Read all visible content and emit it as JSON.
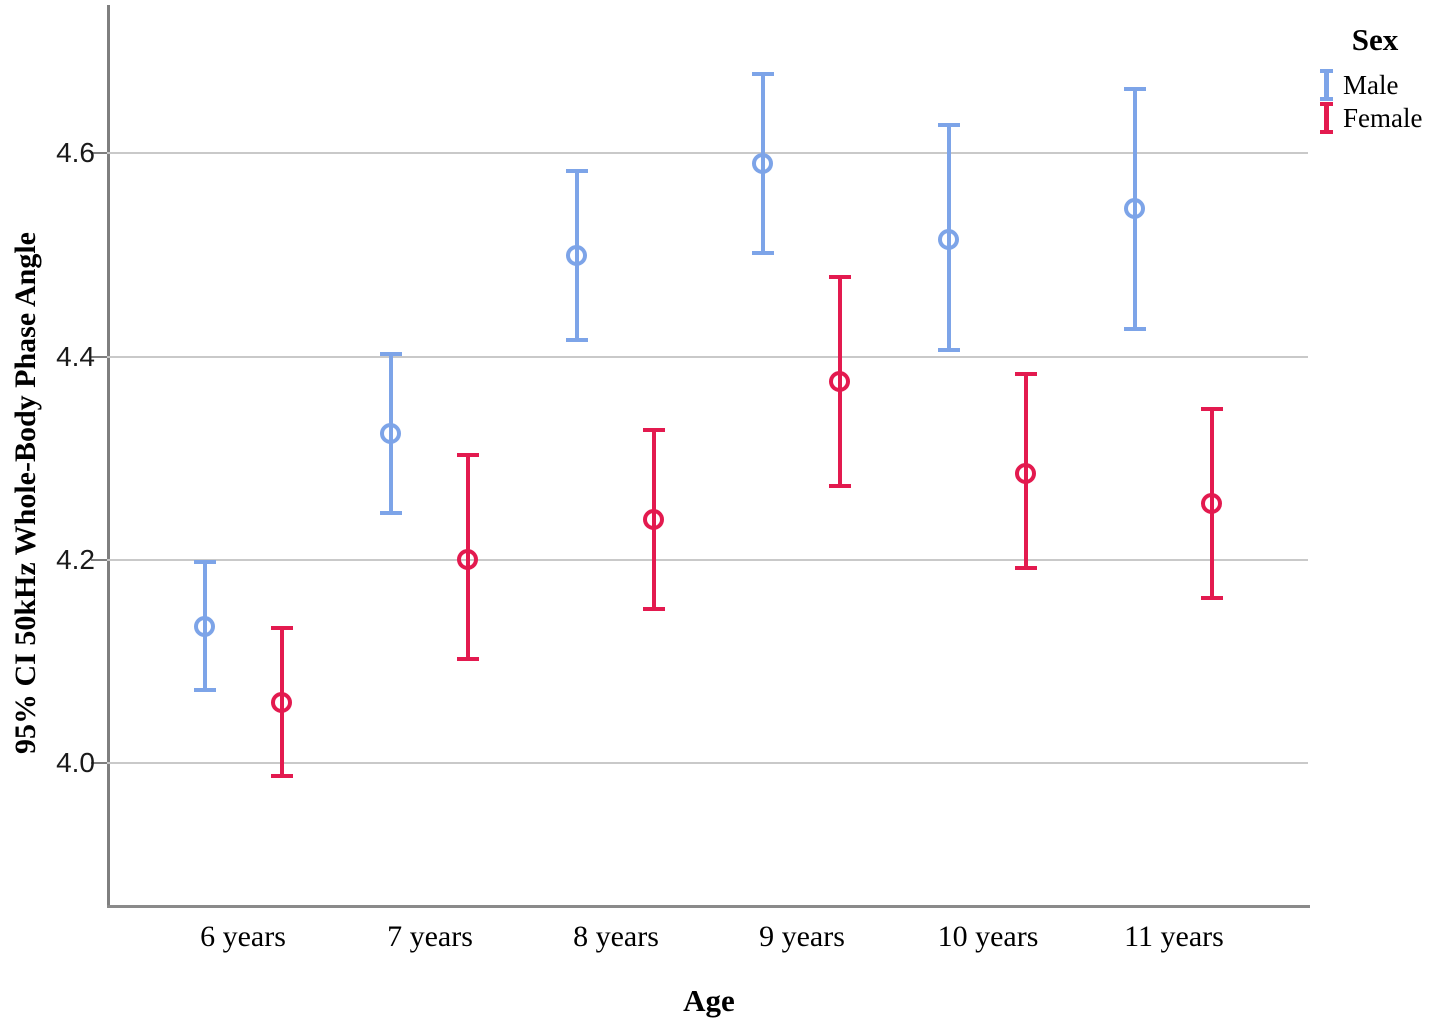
{
  "chart_data": {
    "type": "errorbar",
    "title": "",
    "xlabel": "Age",
    "ylabel": "95% CI 50kHz Whole-Body Phase Angle",
    "categories": [
      "6 years",
      "7 years",
      "8 years",
      "9 years",
      "10 years",
      "11 years"
    ],
    "y_tick_labels": [
      "4.0",
      "4.2",
      "4.4",
      "4.6"
    ],
    "y_ticks": [
      4.0,
      4.2,
      4.4,
      4.6
    ],
    "ylim": [
      3.86,
      4.75
    ],
    "grid": "horizontal-only",
    "legend_position": "top-right",
    "legend": {
      "title": "Sex",
      "entries": [
        {
          "label": "Male",
          "color": "#7DA4E8"
        },
        {
          "label": "Female",
          "color": "#E31A4F"
        }
      ]
    },
    "series": [
      {
        "name": "Male",
        "color": "#7DA4E8",
        "points": [
          {
            "category": "6 years",
            "mean": 4.135,
            "ci_low": 4.07,
            "ci_high": 4.2
          },
          {
            "category": "7 years",
            "mean": 4.325,
            "ci_low": 4.245,
            "ci_high": 4.405
          },
          {
            "category": "8 years",
            "mean": 4.5,
            "ci_low": 4.415,
            "ci_high": 4.585
          },
          {
            "category": "9 years",
            "mean": 4.59,
            "ci_low": 4.5,
            "ci_high": 4.68
          },
          {
            "category": "10 years",
            "mean": 4.515,
            "ci_low": 4.405,
            "ci_high": 4.63
          },
          {
            "category": "11 years",
            "mean": 4.545,
            "ci_low": 4.425,
            "ci_high": 4.665
          }
        ]
      },
      {
        "name": "Female",
        "color": "#E31A4F",
        "points": [
          {
            "category": "6 years",
            "mean": 4.06,
            "ci_low": 3.985,
            "ci_high": 4.135
          },
          {
            "category": "7 years",
            "mean": 4.2,
            "ci_low": 4.1,
            "ci_high": 4.305
          },
          {
            "category": "8 years",
            "mean": 4.24,
            "ci_low": 4.15,
            "ci_high": 4.33
          },
          {
            "category": "9 years",
            "mean": 4.375,
            "ci_low": 4.27,
            "ci_high": 4.48
          },
          {
            "category": "10 years",
            "mean": 4.285,
            "ci_low": 4.19,
            "ci_high": 4.385
          },
          {
            "category": "11 years",
            "mean": 4.255,
            "ci_low": 4.16,
            "ci_high": 4.35
          }
        ]
      }
    ]
  },
  "colors": {
    "male": "#7DA4E8",
    "female": "#E31A4F",
    "gridline": "#C9C9C9",
    "axis": "#7F7F7F",
    "background": "#FFFFFF"
  }
}
